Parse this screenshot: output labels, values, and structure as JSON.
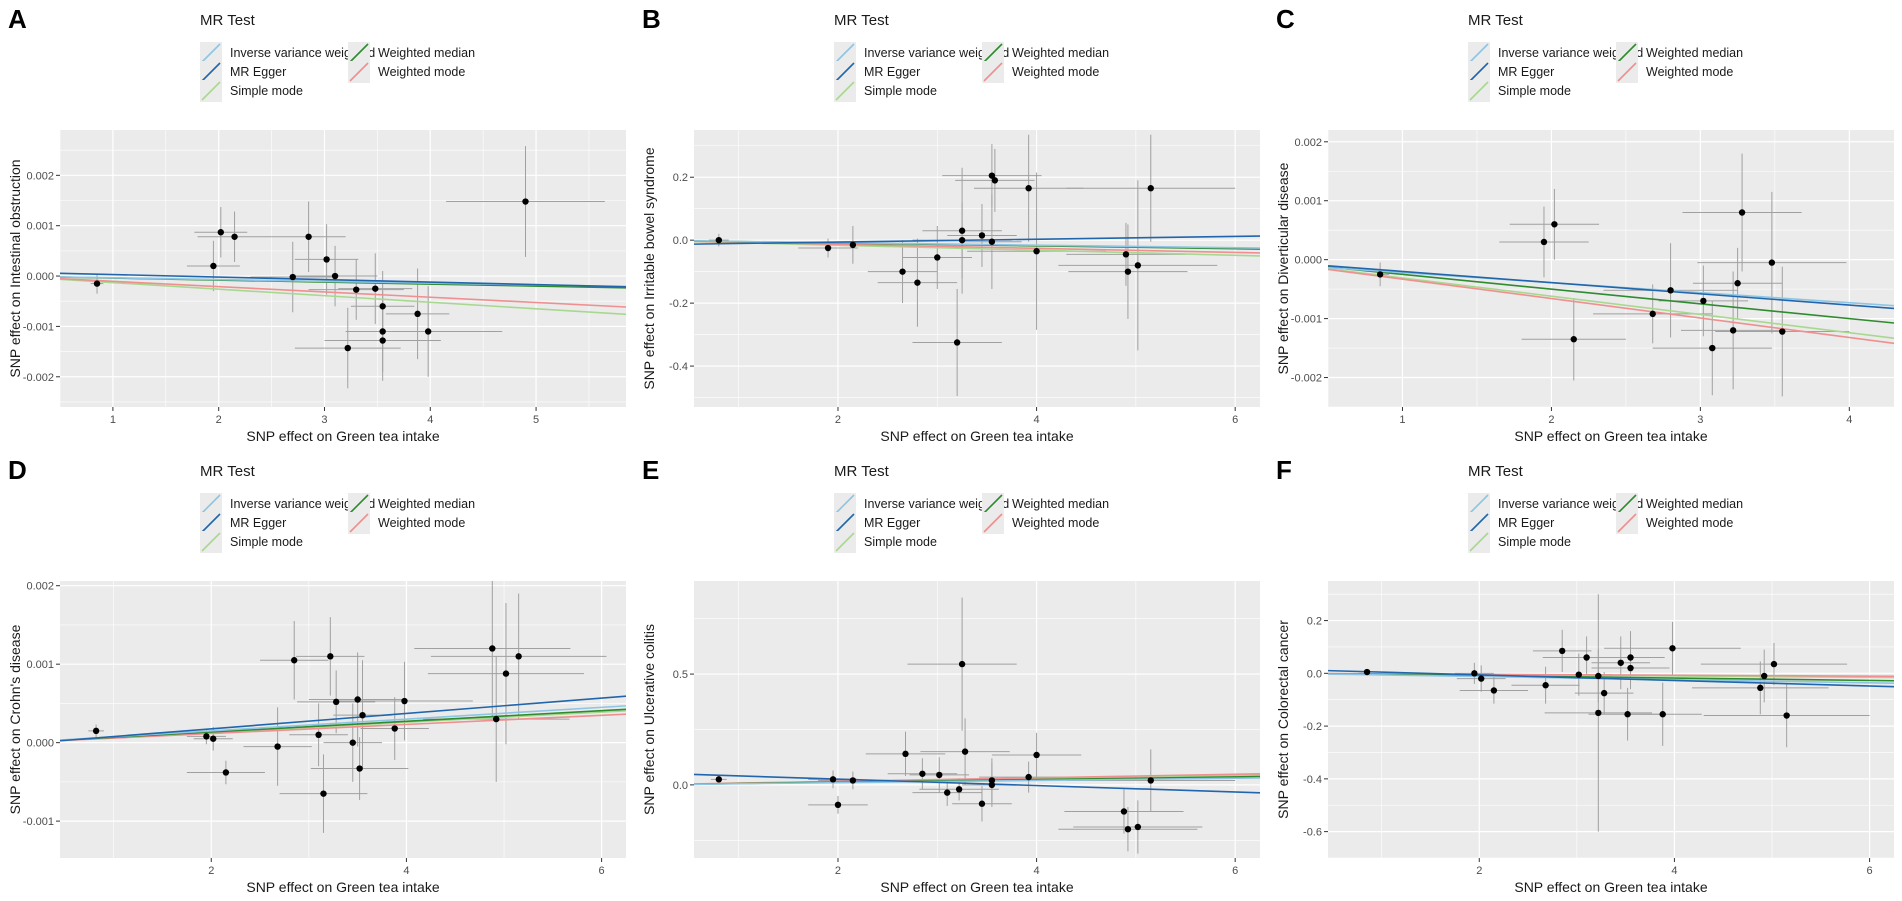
{
  "colors": {
    "ivw": "#8ec5e3",
    "mr_egger": "#2166ac",
    "simple_mode": "#a8d88f",
    "weighted_median": "#2e8b2e",
    "weighted_mode": "#f08f8f",
    "panel_bg": "#ebebeb",
    "grid": "#ffffff",
    "point": "#000000",
    "errorbar": "#a0a0a0"
  },
  "legend": {
    "title": "MR Test",
    "items": [
      {
        "key": "ivw",
        "label": "Inverse variance weighted"
      },
      {
        "key": "weighted_median",
        "label": "Weighted median"
      },
      {
        "key": "mr_egger",
        "label": "MR Egger"
      },
      {
        "key": "weighted_mode",
        "label": "Weighted mode"
      },
      {
        "key": "simple_mode",
        "label": "Simple mode"
      }
    ]
  },
  "chart_data": [
    {
      "panel": "A",
      "type": "scatter",
      "xlabel": "SNP effect on Green tea intake",
      "ylabel": "SNP effect on Intestinal obstruction",
      "xlim": [
        0.5,
        5.85
      ],
      "ylim": [
        -0.0026,
        0.0029
      ],
      "xticks": [
        1,
        2,
        3,
        4,
        5
      ],
      "xtick_labels": [
        "1",
        "2",
        "3",
        "4",
        "5"
      ],
      "yticks": [
        -0.002,
        -0.001,
        0,
        0.001,
        0.002
      ],
      "ytick_labels": [
        "-0.002",
        "-0.001",
        "0.000",
        "0.001",
        "0.002"
      ],
      "points": [
        {
          "x": 0.85,
          "y": -0.00015,
          "xe": 0.06,
          "ye": 0.0002
        },
        {
          "x": 1.95,
          "y": 0.0002,
          "xe": 0.25,
          "ye": 0.0005
        },
        {
          "x": 2.02,
          "y": 0.00087,
          "xe": 0.25,
          "ye": 0.0005
        },
        {
          "x": 2.15,
          "y": 0.00078,
          "xe": 0.35,
          "ye": 0.0005
        },
        {
          "x": 2.7,
          "y": -2e-05,
          "xe": 0.4,
          "ye": 0.0007
        },
        {
          "x": 2.85,
          "y": 0.00078,
          "xe": 0.35,
          "ye": 0.0007
        },
        {
          "x": 3.02,
          "y": 0.00033,
          "xe": 0.3,
          "ye": 0.0007
        },
        {
          "x": 3.1,
          "y": 0.0,
          "xe": 0.4,
          "ye": 0.0006
        },
        {
          "x": 3.22,
          "y": -0.00143,
          "xe": 0.5,
          "ye": 0.0008
        },
        {
          "x": 3.3,
          "y": -0.00027,
          "xe": 0.45,
          "ye": 0.0006
        },
        {
          "x": 3.48,
          "y": -0.00025,
          "xe": 0.35,
          "ye": 0.0007
        },
        {
          "x": 3.55,
          "y": -0.0006,
          "xe": 0.3,
          "ye": 0.0007
        },
        {
          "x": 3.55,
          "y": -0.0011,
          "xe": 0.35,
          "ye": 0.0008
        },
        {
          "x": 3.55,
          "y": -0.00128,
          "xe": 0.55,
          "ye": 0.0008
        },
        {
          "x": 3.88,
          "y": -0.00075,
          "xe": 0.3,
          "ye": 0.0009
        },
        {
          "x": 3.98,
          "y": -0.0011,
          "xe": 0.7,
          "ye": 0.0009
        },
        {
          "x": 4.9,
          "y": 0.00148,
          "xe": 0.75,
          "ye": 0.0011
        }
      ],
      "lines": [
        {
          "method": "ivw",
          "intercept": 0,
          "slope": -3.5e-05
        },
        {
          "method": "mr_egger",
          "intercept": 8e-05,
          "slope": -5e-05
        },
        {
          "method": "weighted_median",
          "intercept": 0,
          "slope": -4e-05
        },
        {
          "method": "weighted_mode",
          "intercept": 0,
          "slope": -0.000105
        },
        {
          "method": "simple_mode",
          "intercept": 0,
          "slope": -0.00013
        }
      ]
    },
    {
      "panel": "B",
      "type": "scatter",
      "xlabel": "SNP effect on Green tea intake",
      "ylabel": "SNP effect on Irritable bowel syndrome",
      "xlim": [
        0.55,
        6.25
      ],
      "ylim": [
        -0.53,
        0.35
      ],
      "xticks": [
        2,
        4,
        6
      ],
      "xtick_labels": [
        "2",
        "4",
        "6"
      ],
      "yticks": [
        -0.4,
        -0.2,
        0,
        0.2
      ],
      "ytick_labels": [
        "-0.4",
        "-0.2",
        "0.0",
        "0.2"
      ],
      "points": [
        {
          "x": 0.8,
          "y": 0.0,
          "xe": 0.1,
          "ye": 0.02
        },
        {
          "x": 1.9,
          "y": -0.025,
          "xe": 0.3,
          "ye": 0.03
        },
        {
          "x": 2.15,
          "y": -0.015,
          "xe": 0.3,
          "ye": 0.06
        },
        {
          "x": 2.65,
          "y": -0.1,
          "xe": 0.35,
          "ye": 0.1
        },
        {
          "x": 2.8,
          "y": -0.135,
          "xe": 0.4,
          "ye": 0.14
        },
        {
          "x": 3.0,
          "y": -0.055,
          "xe": 0.35,
          "ye": 0.1
        },
        {
          "x": 3.2,
          "y": -0.325,
          "xe": 0.45,
          "ye": 0.17
        },
        {
          "x": 3.25,
          "y": 0.03,
          "xe": 0.4,
          "ye": 0.2
        },
        {
          "x": 3.25,
          "y": 0.0,
          "xe": 0.5,
          "ye": 0.12
        },
        {
          "x": 3.45,
          "y": 0.015,
          "xe": 0.35,
          "ye": 0.1
        },
        {
          "x": 3.55,
          "y": 0.205,
          "xe": 0.5,
          "ye": 0.1
        },
        {
          "x": 3.58,
          "y": 0.19,
          "xe": 0.4,
          "ye": 0.1
        },
        {
          "x": 3.55,
          "y": -0.005,
          "xe": 0.3,
          "ye": 0.15
        },
        {
          "x": 3.92,
          "y": 0.165,
          "xe": 0.55,
          "ye": 0.17
        },
        {
          "x": 4.0,
          "y": -0.035,
          "xe": 0.7,
          "ye": 0.25
        },
        {
          "x": 4.9,
          "y": -0.045,
          "xe": 0.6,
          "ye": 0.1
        },
        {
          "x": 4.92,
          "y": -0.1,
          "xe": 0.6,
          "ye": 0.15
        },
        {
          "x": 5.02,
          "y": -0.08,
          "xe": 0.8,
          "ye": 0.27
        },
        {
          "x": 5.15,
          "y": 0.165,
          "xe": 0.85,
          "ye": 0.17
        }
      ],
      "lines": [
        {
          "method": "ivw",
          "intercept": 0,
          "slope": -0.004
        },
        {
          "method": "mr_egger",
          "intercept": -0.015,
          "slope": 0.0045
        },
        {
          "method": "weighted_median",
          "intercept": 0,
          "slope": -0.0045
        },
        {
          "method": "weighted_mode",
          "intercept": 0,
          "slope": -0.0065
        },
        {
          "method": "simple_mode",
          "intercept": 0,
          "slope": -0.008
        }
      ]
    },
    {
      "panel": "C",
      "type": "scatter",
      "xlabel": "SNP effect on Green tea intake",
      "ylabel": "SNP effect on Diverticular disease",
      "xlim": [
        0.5,
        4.3
      ],
      "ylim": [
        -0.0025,
        0.0022
      ],
      "xticks": [
        1,
        2,
        3,
        4
      ],
      "xtick_labels": [
        "1",
        "2",
        "3",
        "4"
      ],
      "yticks": [
        -0.002,
        -0.001,
        0,
        0.001,
        0.002
      ],
      "ytick_labels": [
        "-0.002",
        "-0.001",
        "0.000",
        "0.001",
        "0.002"
      ],
      "points": [
        {
          "x": 0.85,
          "y": -0.00025,
          "xe": 0.06,
          "ye": 0.0002
        },
        {
          "x": 1.95,
          "y": 0.0003,
          "xe": 0.3,
          "ye": 0.0006
        },
        {
          "x": 2.02,
          "y": 0.0006,
          "xe": 0.3,
          "ye": 0.0006
        },
        {
          "x": 2.15,
          "y": -0.00135,
          "xe": 0.35,
          "ye": 0.0007
        },
        {
          "x": 2.68,
          "y": -0.00092,
          "xe": 0.4,
          "ye": 0.0005
        },
        {
          "x": 2.8,
          "y": -0.00052,
          "xe": 0.45,
          "ye": 0.0008
        },
        {
          "x": 3.02,
          "y": -0.0007,
          "xe": 0.3,
          "ye": 0.0006
        },
        {
          "x": 3.08,
          "y": -0.0015,
          "xe": 0.4,
          "ye": 0.0008
        },
        {
          "x": 3.22,
          "y": -0.0012,
          "xe": 0.35,
          "ye": 0.001
        },
        {
          "x": 3.25,
          "y": -0.0004,
          "xe": 0.3,
          "ye": 0.0006
        },
        {
          "x": 3.28,
          "y": 0.0008,
          "xe": 0.4,
          "ye": 0.001
        },
        {
          "x": 3.48,
          "y": -5e-05,
          "xe": 0.5,
          "ye": 0.0012
        },
        {
          "x": 3.55,
          "y": -0.00122,
          "xe": 0.45,
          "ye": 0.0011
        }
      ],
      "lines": [
        {
          "method": "ivw",
          "intercept": -5e-05,
          "slope": -0.00017
        },
        {
          "method": "mr_egger",
          "intercept": -1e-05,
          "slope": -0.00019
        },
        {
          "method": "weighted_median",
          "intercept": 0,
          "slope": -0.00025
        },
        {
          "method": "weighted_mode",
          "intercept": 0,
          "slope": -0.00033
        },
        {
          "method": "simple_mode",
          "intercept": 0,
          "slope": -0.00031
        }
      ]
    },
    {
      "panel": "D",
      "type": "scatter",
      "xlabel": "SNP effect on Green tea intake",
      "ylabel": "SNP effect on Crohn's disease",
      "xlim": [
        0.45,
        6.25
      ],
      "ylim": [
        -0.00147,
        0.00206
      ],
      "xticks": [
        2,
        4,
        6
      ],
      "xtick_labels": [
        "2",
        "4",
        "6"
      ],
      "yticks": [
        -0.001,
        0,
        0.001,
        0.002
      ],
      "ytick_labels": [
        "-0.001",
        "0.000",
        "0.001",
        "0.002"
      ],
      "points": [
        {
          "x": 0.82,
          "y": 0.00015,
          "xe": 0.08,
          "ye": 8e-05
        },
        {
          "x": 1.95,
          "y": 8e-05,
          "xe": 0.2,
          "ye": 0.0001
        },
        {
          "x": 2.02,
          "y": 5e-05,
          "xe": 0.2,
          "ye": 0.00015
        },
        {
          "x": 2.15,
          "y": -0.00038,
          "xe": 0.4,
          "ye": 0.00015
        },
        {
          "x": 2.68,
          "y": -5e-05,
          "xe": 0.35,
          "ye": 0.0005
        },
        {
          "x": 2.85,
          "y": 0.00105,
          "xe": 0.35,
          "ye": 0.0005
        },
        {
          "x": 3.1,
          "y": 0.0001,
          "xe": 0.3,
          "ye": 0.0004
        },
        {
          "x": 3.15,
          "y": -0.00065,
          "xe": 0.45,
          "ye": 0.0005
        },
        {
          "x": 3.22,
          "y": 0.0011,
          "xe": 0.35,
          "ye": 0.0005
        },
        {
          "x": 3.28,
          "y": 0.00052,
          "xe": 0.4,
          "ye": 0.0004
        },
        {
          "x": 3.45,
          "y": 0.0,
          "xe": 0.3,
          "ye": 0.0005
        },
        {
          "x": 3.5,
          "y": 0.00055,
          "xe": 0.5,
          "ye": 0.0006
        },
        {
          "x": 3.52,
          "y": -0.00033,
          "xe": 0.5,
          "ye": 0.0004
        },
        {
          "x": 3.55,
          "y": 0.00035,
          "xe": 0.3,
          "ye": 0.0007
        },
        {
          "x": 3.88,
          "y": 0.00018,
          "xe": 0.35,
          "ye": 0.0004
        },
        {
          "x": 3.98,
          "y": 0.00053,
          "xe": 0.7,
          "ye": 0.0005
        },
        {
          "x": 4.88,
          "y": 0.0012,
          "xe": 0.8,
          "ye": 0.0009
        },
        {
          "x": 4.92,
          "y": 0.0003,
          "xe": 0.75,
          "ye": 0.0008
        },
        {
          "x": 5.02,
          "y": 0.00088,
          "xe": 0.8,
          "ye": 0.0009
        },
        {
          "x": 5.15,
          "y": 0.0011,
          "xe": 0.9,
          "ye": 0.0008
        }
      ],
      "lines": [
        {
          "method": "ivw",
          "intercept": 0,
          "slope": 7.5e-05
        },
        {
          "method": "mr_egger",
          "intercept": -2e-05,
          "slope": 9.8e-05
        },
        {
          "method": "weighted_median",
          "intercept": 0,
          "slope": 6.8e-05
        },
        {
          "method": "weighted_mode",
          "intercept": 0,
          "slope": 5.8e-05
        },
        {
          "method": "simple_mode",
          "intercept": 0,
          "slope": 6.5e-05
        }
      ]
    },
    {
      "panel": "E",
      "type": "scatter",
      "xlabel": "SNP effect on Green tea intake",
      "ylabel": "SNP effect on Ulcerative colitis",
      "xlim": [
        0.55,
        6.25
      ],
      "ylim": [
        -0.33,
        0.92
      ],
      "xticks": [
        2,
        4,
        6
      ],
      "xtick_labels": [
        "2",
        "4",
        "6"
      ],
      "yticks": [
        0,
        0.5
      ],
      "ytick_labels": [
        "0.0",
        "0.5"
      ],
      "points": [
        {
          "x": 0.8,
          "y": 0.025,
          "xe": 0.08,
          "ye": 0.01
        },
        {
          "x": 1.95,
          "y": 0.025,
          "xe": 0.25,
          "ye": 0.04
        },
        {
          "x": 2.0,
          "y": -0.09,
          "xe": 0.3,
          "ye": 0.04
        },
        {
          "x": 2.15,
          "y": 0.02,
          "xe": 0.35,
          "ye": 0.04
        },
        {
          "x": 2.68,
          "y": 0.14,
          "xe": 0.4,
          "ye": 0.1
        },
        {
          "x": 2.85,
          "y": 0.05,
          "xe": 0.35,
          "ye": 0.07
        },
        {
          "x": 3.02,
          "y": 0.045,
          "xe": 0.3,
          "ye": 0.08
        },
        {
          "x": 3.1,
          "y": -0.035,
          "xe": 0.35,
          "ye": 0.06
        },
        {
          "x": 3.22,
          "y": -0.02,
          "xe": 0.4,
          "ye": 0.05
        },
        {
          "x": 3.25,
          "y": 0.545,
          "xe": 0.55,
          "ye": 0.3
        },
        {
          "x": 3.28,
          "y": 0.15,
          "xe": 0.45,
          "ye": 0.15
        },
        {
          "x": 3.45,
          "y": -0.085,
          "xe": 0.3,
          "ye": 0.08
        },
        {
          "x": 3.55,
          "y": 0.0,
          "xe": 0.3,
          "ye": 0.1
        },
        {
          "x": 3.55,
          "y": 0.02,
          "xe": 0.4,
          "ye": 0.1
        },
        {
          "x": 3.92,
          "y": 0.035,
          "xe": 0.5,
          "ye": 0.07
        },
        {
          "x": 4.0,
          "y": 0.135,
          "xe": 0.45,
          "ye": 0.1
        },
        {
          "x": 4.88,
          "y": -0.12,
          "xe": 0.6,
          "ye": 0.1
        },
        {
          "x": 4.92,
          "y": -0.2,
          "xe": 0.7,
          "ye": 0.1
        },
        {
          "x": 5.02,
          "y": -0.19,
          "xe": 0.65,
          "ye": 0.12
        },
        {
          "x": 5.15,
          "y": 0.02,
          "xe": 0.85,
          "ye": 0.14
        }
      ],
      "lines": [
        {
          "method": "ivw",
          "intercept": 0,
          "slope": 0.005
        },
        {
          "method": "mr_egger",
          "intercept": 0.055,
          "slope": -0.0145
        },
        {
          "method": "weighted_median",
          "intercept": 0,
          "slope": 0.006
        },
        {
          "method": "weighted_mode",
          "intercept": 0,
          "slope": 0.008
        },
        {
          "method": "simple_mode",
          "intercept": 0,
          "slope": 0.007
        }
      ]
    },
    {
      "panel": "F",
      "type": "scatter",
      "xlabel": "SNP effect on Green tea intake",
      "ylabel": "SNP effect on Colorectal cancer",
      "xlim": [
        0.45,
        6.25
      ],
      "ylim": [
        -0.7,
        0.35
      ],
      "xticks": [
        2,
        4,
        6
      ],
      "xtick_labels": [
        "2",
        "4",
        "6"
      ],
      "yticks": [
        -0.6,
        -0.4,
        -0.2,
        0,
        0.2
      ],
      "ytick_labels": [
        "-0.6",
        "-0.4",
        "-0.2",
        "0.0",
        "0.2"
      ],
      "points": [
        {
          "x": 0.85,
          "y": 0.005,
          "xe": 0.08,
          "ye": 0.01
        },
        {
          "x": 1.95,
          "y": 0.0,
          "xe": 0.2,
          "ye": 0.04
        },
        {
          "x": 2.02,
          "y": -0.02,
          "xe": 0.25,
          "ye": 0.05
        },
        {
          "x": 2.15,
          "y": -0.065,
          "xe": 0.35,
          "ye": 0.05
        },
        {
          "x": 2.68,
          "y": -0.045,
          "xe": 0.35,
          "ye": 0.07
        },
        {
          "x": 2.85,
          "y": 0.085,
          "xe": 0.3,
          "ye": 0.08
        },
        {
          "x": 3.02,
          "y": -0.005,
          "xe": 0.35,
          "ye": 0.08
        },
        {
          "x": 3.1,
          "y": 0.06,
          "xe": 0.45,
          "ye": 0.08
        },
        {
          "x": 3.22,
          "y": -0.15,
          "xe": 0.55,
          "ye": 0.45
        },
        {
          "x": 3.22,
          "y": -0.01,
          "xe": 0.35,
          "ye": 0.1
        },
        {
          "x": 3.28,
          "y": -0.075,
          "xe": 0.3,
          "ye": 0.08
        },
        {
          "x": 3.45,
          "y": 0.04,
          "xe": 0.3,
          "ye": 0.1
        },
        {
          "x": 3.52,
          "y": -0.155,
          "xe": 0.4,
          "ye": 0.1
        },
        {
          "x": 3.55,
          "y": 0.06,
          "xe": 0.35,
          "ye": 0.1
        },
        {
          "x": 3.55,
          "y": 0.02,
          "xe": 0.4,
          "ye": 0.08
        },
        {
          "x": 3.88,
          "y": -0.155,
          "xe": 0.4,
          "ye": 0.12
        },
        {
          "x": 3.98,
          "y": 0.095,
          "xe": 0.7,
          "ye": 0.1
        },
        {
          "x": 4.88,
          "y": -0.055,
          "xe": 0.7,
          "ye": 0.1
        },
        {
          "x": 4.92,
          "y": -0.01,
          "xe": 0.65,
          "ye": 0.1
        },
        {
          "x": 5.02,
          "y": 0.035,
          "xe": 0.75,
          "ye": 0.08
        },
        {
          "x": 5.15,
          "y": -0.16,
          "xe": 0.85,
          "ye": 0.12
        }
      ],
      "lines": [
        {
          "method": "ivw",
          "intercept": 0,
          "slope": -0.006
        },
        {
          "method": "mr_egger",
          "intercept": 0.015,
          "slope": -0.0105
        },
        {
          "method": "weighted_median",
          "intercept": 0,
          "slope": -0.0045
        },
        {
          "method": "weighted_mode",
          "intercept": 0,
          "slope": -0.0018
        },
        {
          "method": "simple_mode",
          "intercept": 0,
          "slope": -0.0025
        }
      ]
    }
  ]
}
